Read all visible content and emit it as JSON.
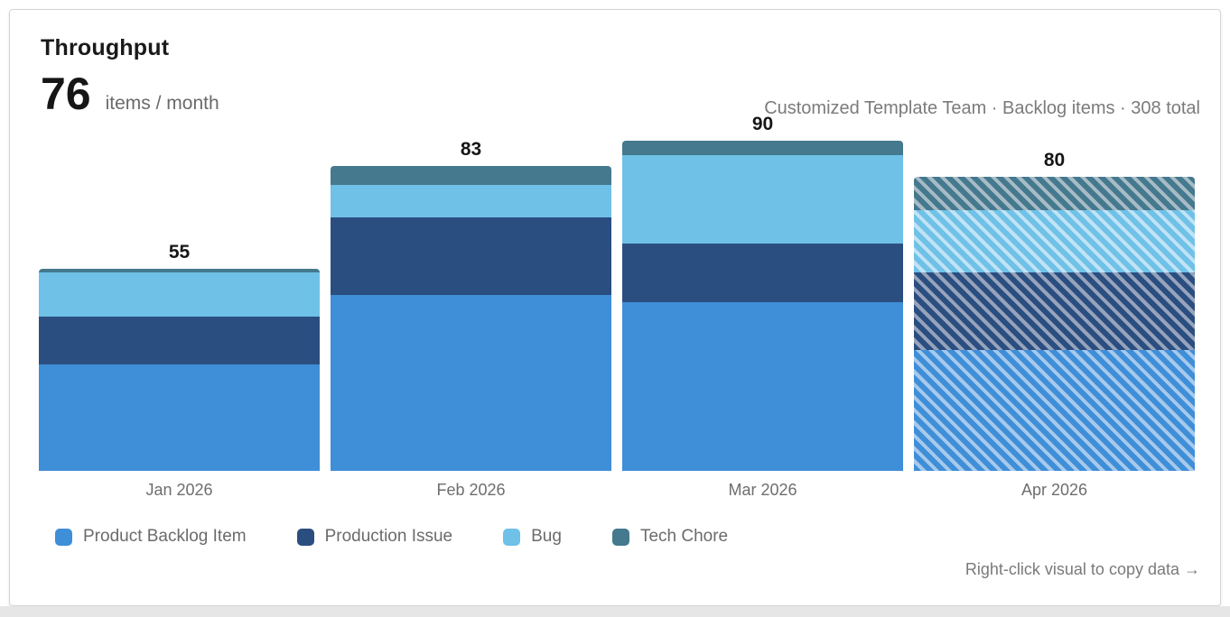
{
  "card": {
    "title": "Throughput",
    "metric_value": "76",
    "metric_unit": "items / month",
    "context_line": "Customized Template Team · Backlog items · 308 total",
    "footer_hint": "Right-click visual to copy data →"
  },
  "chart_data": {
    "type": "bar",
    "stacked": true,
    "title": "Throughput",
    "categories": [
      "Jan 2026",
      "Feb 2026",
      "Mar 2026",
      "Apr 2026"
    ],
    "series": [
      {
        "name": "Product Backlog Item",
        "color": "#3f8ed8",
        "hatch_tint": "#a6c9ec",
        "values": [
          29,
          48,
          46,
          33
        ]
      },
      {
        "name": "Production Issue",
        "color": "#2b4e80",
        "hatch_tint": "#96a3bc",
        "values": [
          13,
          21,
          16,
          21
        ]
      },
      {
        "name": "Bug",
        "color": "#6fc1e7",
        "hatch_tint": "#c0e3f5",
        "values": [
          12,
          9,
          24,
          17
        ]
      },
      {
        "name": "Tech Chore",
        "color": "#44798e",
        "hatch_tint": "#a7bbc6",
        "values": [
          1,
          5,
          4,
          9
        ]
      }
    ],
    "totals": [
      55,
      83,
      90,
      80
    ],
    "grand_total": 308,
    "hatched_categories": [
      "Apr 2026"
    ],
    "hatch_meaning": "in-progress / forecast month",
    "value_labels": "total shown above each bar",
    "legend_position": "bottom",
    "xlabel": "",
    "ylabel": "",
    "ylim": [
      0,
      90
    ],
    "axis_lines": false,
    "grid": false
  }
}
